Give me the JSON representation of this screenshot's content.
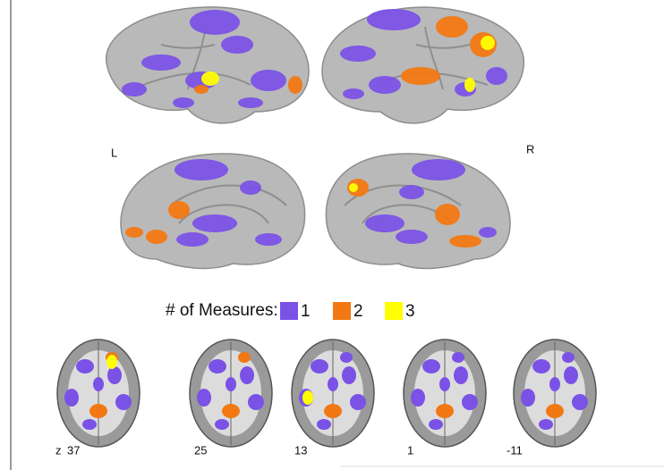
{
  "hemisphere_labels": {
    "left": "L",
    "right": "R"
  },
  "legend": {
    "title": "# of Measures:",
    "items": [
      {
        "label": "1",
        "color": "#7b52e6"
      },
      {
        "label": "2",
        "color": "#f27813"
      },
      {
        "label": "3",
        "color": "#ffff00"
      }
    ]
  },
  "slices": {
    "axis_label": "z",
    "levels": [
      "37",
      "25",
      "13",
      "1",
      "-11"
    ]
  }
}
